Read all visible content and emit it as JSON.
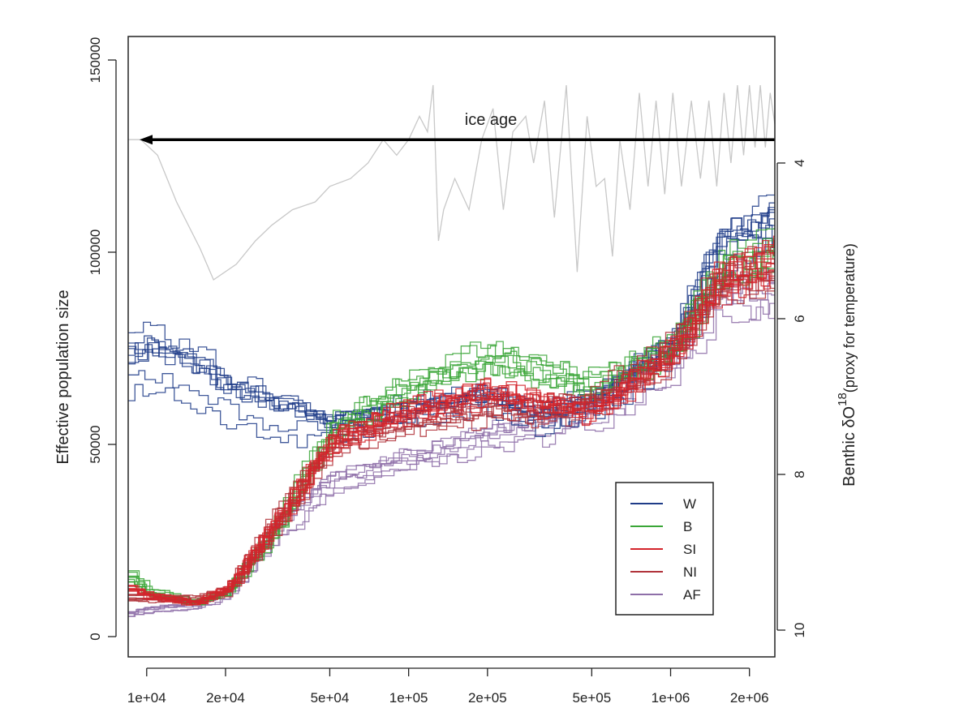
{
  "chart_data": {
    "type": "line",
    "x_scale": "log",
    "xlim": [
      8500,
      2500000
    ],
    "ylim": [
      0,
      150000
    ],
    "y2lim": [
      10,
      2.6
    ],
    "ylabel": "Effective population size",
    "y2label_prefix": "Benthic  δO",
    "y2label_sup": "18",
    "y2label_suffix": "(proxy for temperature)",
    "x_ticks": [
      {
        "value": 10000,
        "label": "1e+04"
      },
      {
        "value": 20000,
        "label": "2e+04"
      },
      {
        "value": 50000,
        "label": "5e+04"
      },
      {
        "value": 100000,
        "label": "1e+05"
      },
      {
        "value": 200000,
        "label": "2e+05"
      },
      {
        "value": 500000,
        "label": "5e+05"
      },
      {
        "value": 1000000,
        "label": "1e+06"
      },
      {
        "value": 2000000,
        "label": "2e+06"
      }
    ],
    "y_ticks": [
      {
        "value": 0,
        "label": "0"
      },
      {
        "value": 50000,
        "label": "50000"
      },
      {
        "value": 100000,
        "label": "100000"
      },
      {
        "value": 150000,
        "label": "150000"
      }
    ],
    "y2_ticks": [
      {
        "value": 4,
        "label": "4"
      },
      {
        "value": 6,
        "label": "6"
      },
      {
        "value": 8,
        "label": "8"
      },
      {
        "value": 10,
        "label": "10"
      }
    ],
    "annotation": {
      "text": "ice age",
      "x_start": 2500000,
      "x_end": 8500,
      "y2": 3.7
    },
    "legend": {
      "position": "bottom-right"
    },
    "series": [
      {
        "name": "W",
        "color": "#1f3c88",
        "replicates": 9,
        "points": [
          [
            8500,
            70000
          ],
          [
            10000,
            72000
          ],
          [
            15000,
            68000
          ],
          [
            20000,
            62000
          ],
          [
            30000,
            58000
          ],
          [
            50000,
            55000
          ],
          [
            100000,
            58000
          ],
          [
            200000,
            62000
          ],
          [
            300000,
            57000
          ],
          [
            500000,
            60000
          ],
          [
            1000000,
            75000
          ],
          [
            1500000,
            100000
          ],
          [
            2500000,
            108000
          ]
        ]
      },
      {
        "name": "B",
        "color": "#3aa637",
        "replicates": 8,
        "points": [
          [
            8500,
            16000
          ],
          [
            10000,
            12000
          ],
          [
            15000,
            9000
          ],
          [
            20000,
            12000
          ],
          [
            30000,
            28000
          ],
          [
            50000,
            55000
          ],
          [
            100000,
            66000
          ],
          [
            200000,
            74000
          ],
          [
            300000,
            70000
          ],
          [
            500000,
            66000
          ],
          [
            1000000,
            76000
          ],
          [
            1500000,
            96000
          ],
          [
            2500000,
            102000
          ]
        ]
      },
      {
        "name": "SI",
        "color": "#d4242b",
        "replicates": 10,
        "points": [
          [
            8500,
            13000
          ],
          [
            10000,
            11000
          ],
          [
            15000,
            9000
          ],
          [
            20000,
            13000
          ],
          [
            30000,
            30000
          ],
          [
            50000,
            52000
          ],
          [
            100000,
            60000
          ],
          [
            200000,
            65000
          ],
          [
            300000,
            62000
          ],
          [
            500000,
            60000
          ],
          [
            1000000,
            75000
          ],
          [
            1500000,
            94000
          ],
          [
            2500000,
            100000
          ]
        ]
      },
      {
        "name": "NI",
        "color": "#b0323a",
        "replicates": 9,
        "points": [
          [
            8500,
            10000
          ],
          [
            10000,
            10000
          ],
          [
            15000,
            9500
          ],
          [
            20000,
            12000
          ],
          [
            30000,
            29000
          ],
          [
            50000,
            50000
          ],
          [
            100000,
            56000
          ],
          [
            200000,
            59000
          ],
          [
            300000,
            58000
          ],
          [
            500000,
            61000
          ],
          [
            1000000,
            74000
          ],
          [
            1500000,
            92000
          ],
          [
            2500000,
            95000
          ]
        ]
      },
      {
        "name": "AF",
        "color": "#8e6fa8",
        "replicates": 7,
        "points": [
          [
            8500,
            6000
          ],
          [
            10000,
            7000
          ],
          [
            15000,
            8000
          ],
          [
            20000,
            11000
          ],
          [
            30000,
            27000
          ],
          [
            50000,
            40000
          ],
          [
            100000,
            46000
          ],
          [
            200000,
            52000
          ],
          [
            300000,
            54000
          ],
          [
            500000,
            58000
          ],
          [
            1000000,
            72000
          ],
          [
            1500000,
            88000
          ],
          [
            2500000,
            90000
          ]
        ]
      }
    ],
    "temperature_proxy": {
      "color": "#c8c8c8",
      "points": [
        [
          8500,
          3.7
        ],
        [
          9500,
          3.7
        ],
        [
          11000,
          3.9
        ],
        [
          13000,
          4.5
        ],
        [
          16000,
          5.1
        ],
        [
          18000,
          5.5
        ],
        [
          22000,
          5.3
        ],
        [
          26000,
          5.0
        ],
        [
          30000,
          4.8
        ],
        [
          36000,
          4.6
        ],
        [
          44000,
          4.5
        ],
        [
          50000,
          4.3
        ],
        [
          60000,
          4.2
        ],
        [
          70000,
          4.0
        ],
        [
          80000,
          3.7
        ],
        [
          90000,
          3.9
        ],
        [
          100000,
          3.7
        ],
        [
          110000,
          3.4
        ],
        [
          118000,
          3.6
        ],
        [
          124000,
          3.0
        ],
        [
          130000,
          5.0
        ],
        [
          136000,
          4.6
        ],
        [
          150000,
          4.2
        ],
        [
          170000,
          4.6
        ],
        [
          190000,
          3.7
        ],
        [
          210000,
          3.3
        ],
        [
          230000,
          4.6
        ],
        [
          250000,
          3.6
        ],
        [
          280000,
          3.4
        ],
        [
          300000,
          4.0
        ],
        [
          330000,
          3.2
        ],
        [
          360000,
          4.7
        ],
        [
          400000,
          3.0
        ],
        [
          440000,
          5.4
        ],
        [
          480000,
          3.4
        ],
        [
          520000,
          4.3
        ],
        [
          560000,
          4.2
        ],
        [
          600000,
          5.2
        ],
        [
          640000,
          3.7
        ],
        [
          700000,
          4.6
        ],
        [
          760000,
          3.1
        ],
        [
          820000,
          4.3
        ],
        [
          880000,
          3.2
        ],
        [
          950000,
          4.4
        ],
        [
          1020000,
          3.1
        ],
        [
          1100000,
          4.3
        ],
        [
          1200000,
          3.2
        ],
        [
          1300000,
          4.2
        ],
        [
          1400000,
          3.2
        ],
        [
          1500000,
          4.3
        ],
        [
          1600000,
          3.1
        ],
        [
          1700000,
          4.0
        ],
        [
          1800000,
          3.0
        ],
        [
          1900000,
          3.9
        ],
        [
          2000000,
          3.0
        ],
        [
          2100000,
          3.8
        ],
        [
          2200000,
          3.0
        ],
        [
          2300000,
          3.8
        ],
        [
          2400000,
          3.1
        ],
        [
          2500000,
          3.5
        ]
      ]
    }
  }
}
